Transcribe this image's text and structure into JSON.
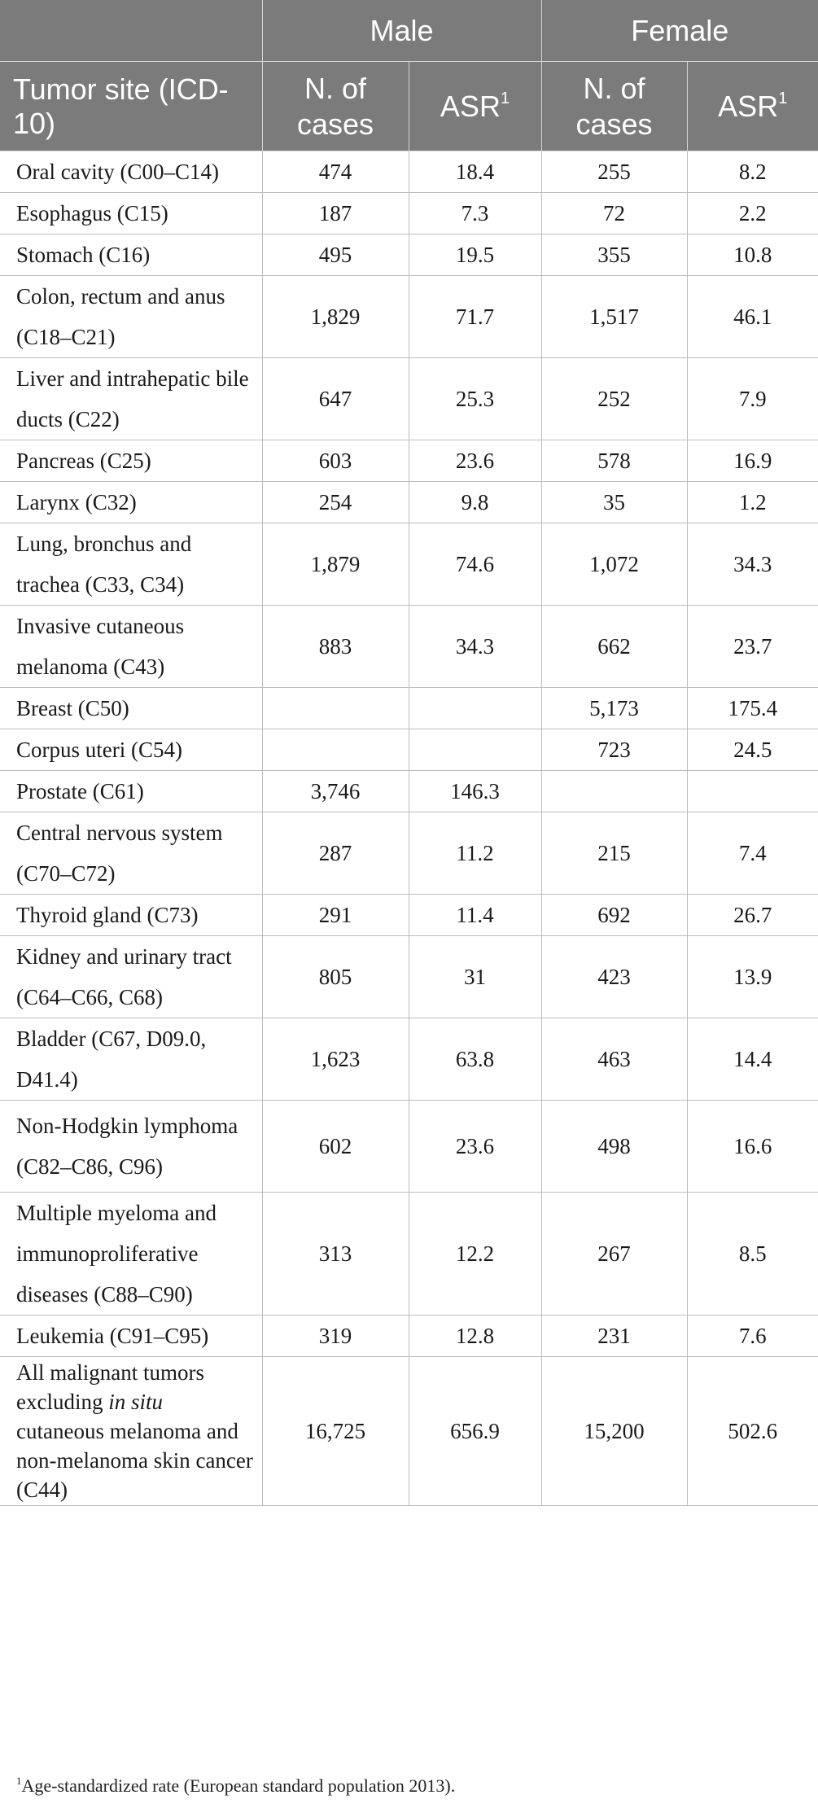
{
  "table": {
    "group_headers": {
      "male": "Male",
      "female": "Female"
    },
    "column_headers": {
      "site": "Tumor site (ICD-10)",
      "male_cases": "N. of cases",
      "male_asr": "ASR",
      "female_cases": "N. of cases",
      "female_asr": "ASR",
      "asr_marker": "1"
    },
    "rows": [
      {
        "site": "Oral cavity (C00–C14)",
        "male_cases": "474",
        "male_asr": "18.4",
        "female_cases": "255",
        "female_asr": "8.2"
      },
      {
        "site": "Esophagus (C15)",
        "male_cases": "187",
        "male_asr": "7.3",
        "female_cases": "72",
        "female_asr": "2.2"
      },
      {
        "site": "Stomach (C16)",
        "male_cases": "495",
        "male_asr": "19.5",
        "female_cases": "355",
        "female_asr": "10.8"
      },
      {
        "site": "Colon, rectum and anus (C18–C21)",
        "male_cases": "1,829",
        "male_asr": "71.7",
        "female_cases": "1,517",
        "female_asr": "46.1"
      },
      {
        "site": "Liver and intrahepatic bile ducts (C22)",
        "male_cases": "647",
        "male_asr": "25.3",
        "female_cases": "252",
        "female_asr": "7.9"
      },
      {
        "site": "Pancreas (C25)",
        "male_cases": "603",
        "male_asr": "23.6",
        "female_cases": "578",
        "female_asr": "16.9"
      },
      {
        "site": "Larynx (C32)",
        "male_cases": "254",
        "male_asr": "9.8",
        "female_cases": "35",
        "female_asr": "1.2"
      },
      {
        "site": "Lung, bronchus and trachea (C33, C34)",
        "male_cases": "1,879",
        "male_asr": "74.6",
        "female_cases": "1,072",
        "female_asr": "34.3"
      },
      {
        "site": "Invasive cutaneous melanoma (C43)",
        "male_cases": "883",
        "male_asr": "34.3",
        "female_cases": "662",
        "female_asr": "23.7"
      },
      {
        "site": "Breast (C50)",
        "male_cases": "",
        "male_asr": "",
        "female_cases": "5,173",
        "female_asr": "175.4"
      },
      {
        "site": "Corpus uteri (C54)",
        "male_cases": "",
        "male_asr": "",
        "female_cases": "723",
        "female_asr": "24.5"
      },
      {
        "site": "Prostate (C61)",
        "male_cases": "3,746",
        "male_asr": "146.3",
        "female_cases": "",
        "female_asr": ""
      },
      {
        "site": "Central nervous system (C70–C72)",
        "male_cases": "287",
        "male_asr": "11.2",
        "female_cases": "215",
        "female_asr": "7.4"
      },
      {
        "site": "Thyroid gland (C73)",
        "male_cases": "291",
        "male_asr": "11.4",
        "female_cases": "692",
        "female_asr": "26.7"
      },
      {
        "site": "Kidney and urinary tract (C64–C66, C68)",
        "male_cases": "805",
        "male_asr": "31",
        "female_cases": "423",
        "female_asr": "13.9"
      },
      {
        "site": "Bladder (C67, D09.0, D41.4)",
        "male_cases": "1,623",
        "male_asr": "63.8",
        "female_cases": "463",
        "female_asr": "14.4"
      },
      {
        "site": "Non-Hodgkin lymphoma (C82–C86, C96)",
        "male_cases": "602",
        "male_asr": "23.6",
        "female_cases": "498",
        "female_asr": "16.6"
      },
      {
        "site": "Multiple myeloma and immunoproliferative diseases (C88–C90)",
        "male_cases": "313",
        "male_asr": "12.2",
        "female_cases": "267",
        "female_asr": "8.5"
      },
      {
        "site": "Leukemia (C91–C95)",
        "male_cases": "319",
        "male_asr": "12.8",
        "female_cases": "231",
        "female_asr": "7.6"
      },
      {
        "site_parts": [
          "All malignant tumors excluding ",
          "in situ",
          " cutaneous melanoma and non-melanoma skin cancer (C44)"
        ],
        "male_cases": "16,725",
        "male_asr": "656.9",
        "female_cases": "15,200",
        "female_asr": "502.6"
      }
    ]
  },
  "footnote": {
    "marker": "1",
    "text": "Age-standardized rate (European standard population 2013)."
  }
}
